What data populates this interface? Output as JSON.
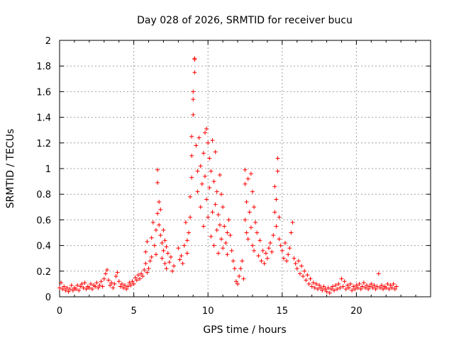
{
  "chart_data": {
    "type": "scatter",
    "title": "Day 028 of 2026, SRMTID for receiver bucu",
    "xlabel": "GPS time / hours",
    "ylabel": "SRMTID / TECUs",
    "xlim": [
      0,
      25
    ],
    "ylim": [
      0,
      2
    ],
    "x_ticks": [
      0,
      5,
      10,
      15,
      20
    ],
    "y_ticks": [
      0,
      0.2,
      0.4,
      0.6,
      0.8,
      1,
      1.2,
      1.4,
      1.6,
      1.8,
      2
    ],
    "x_tick_labels": [
      "0",
      "5",
      "10",
      "15",
      "20"
    ],
    "y_tick_labels": [
      "0",
      "0.2",
      "0.4",
      "0.6",
      "0.8",
      "1",
      "1.2",
      "1.4",
      "1.6",
      "1.8",
      "2"
    ],
    "grid": true,
    "marker": "plus",
    "color": "#ff0000",
    "series": [
      {
        "name": "SRMTID",
        "points": [
          [
            0.0,
            0.07
          ],
          [
            0.1,
            0.11
          ],
          [
            0.2,
            0.06
          ],
          [
            0.3,
            0.08
          ],
          [
            0.4,
            0.05
          ],
          [
            0.5,
            0.07
          ],
          [
            0.6,
            0.04
          ],
          [
            0.7,
            0.06
          ],
          [
            0.8,
            0.09
          ],
          [
            0.9,
            0.05
          ],
          [
            1.0,
            0.07
          ],
          [
            1.1,
            0.06
          ],
          [
            1.2,
            0.09
          ],
          [
            1.3,
            0.05
          ],
          [
            1.4,
            0.08
          ],
          [
            1.5,
            0.1
          ],
          [
            1.6,
            0.07
          ],
          [
            1.7,
            0.11
          ],
          [
            1.8,
            0.06
          ],
          [
            1.9,
            0.08
          ],
          [
            2.0,
            0.07
          ],
          [
            2.1,
            0.1
          ],
          [
            2.2,
            0.06
          ],
          [
            2.3,
            0.09
          ],
          [
            2.4,
            0.08
          ],
          [
            2.5,
            0.11
          ],
          [
            2.6,
            0.07
          ],
          [
            2.7,
            0.09
          ],
          [
            2.8,
            0.12
          ],
          [
            2.9,
            0.08
          ],
          [
            3.0,
            0.14
          ],
          [
            3.1,
            0.18
          ],
          [
            3.2,
            0.21
          ],
          [
            3.3,
            0.13
          ],
          [
            3.4,
            0.09
          ],
          [
            3.5,
            0.11
          ],
          [
            3.6,
            0.07
          ],
          [
            3.7,
            0.1
          ],
          [
            3.8,
            0.16
          ],
          [
            3.9,
            0.19
          ],
          [
            4.0,
            0.12
          ],
          [
            4.1,
            0.08
          ],
          [
            4.2,
            0.1
          ],
          [
            4.3,
            0.07
          ],
          [
            4.4,
            0.09
          ],
          [
            4.5,
            0.06
          ],
          [
            4.6,
            0.08
          ],
          [
            4.7,
            0.11
          ],
          [
            4.8,
            0.09
          ],
          [
            4.9,
            0.12
          ],
          [
            5.0,
            0.1
          ],
          [
            5.1,
            0.15
          ],
          [
            5.2,
            0.13
          ],
          [
            5.3,
            0.17
          ],
          [
            5.4,
            0.14
          ],
          [
            5.5,
            0.18
          ],
          [
            5.6,
            0.16
          ],
          [
            5.7,
            0.21
          ],
          [
            5.8,
            0.26
          ],
          [
            5.9,
            0.19
          ],
          [
            5.8,
            0.35
          ],
          [
            5.9,
            0.43
          ],
          [
            6.0,
            0.22
          ],
          [
            6.1,
            0.28
          ],
          [
            6.2,
            0.31
          ],
          [
            6.2,
            0.46
          ],
          [
            6.3,
            0.58
          ],
          [
            6.4,
            0.4
          ],
          [
            6.5,
            0.52
          ],
          [
            6.5,
            0.33
          ],
          [
            6.6,
            0.65
          ],
          [
            6.6,
            0.89
          ],
          [
            6.6,
            0.99
          ],
          [
            6.7,
            0.74
          ],
          [
            6.7,
            0.56
          ],
          [
            6.8,
            0.48
          ],
          [
            6.8,
            0.68
          ],
          [
            6.9,
            0.42
          ],
          [
            6.9,
            0.3
          ],
          [
            7.0,
            0.36
          ],
          [
            7.0,
            0.52
          ],
          [
            7.1,
            0.44
          ],
          [
            7.1,
            0.26
          ],
          [
            7.2,
            0.39
          ],
          [
            7.2,
            0.22
          ],
          [
            7.3,
            0.34
          ],
          [
            7.4,
            0.27
          ],
          [
            7.5,
            0.31
          ],
          [
            7.6,
            0.2
          ],
          [
            7.7,
            0.24
          ],
          [
            8.0,
            0.38
          ],
          [
            8.1,
            0.29
          ],
          [
            8.2,
            0.32
          ],
          [
            8.3,
            0.26
          ],
          [
            8.4,
            0.4
          ],
          [
            8.5,
            0.58
          ],
          [
            8.6,
            0.44
          ],
          [
            8.6,
            0.34
          ],
          [
            8.7,
            0.5
          ],
          [
            8.8,
            0.62
          ],
          [
            8.8,
            0.78
          ],
          [
            8.9,
            0.93
          ],
          [
            8.9,
            1.1
          ],
          [
            8.9,
            1.25
          ],
          [
            9.0,
            1.42
          ],
          [
            9.0,
            1.54
          ],
          [
            9.0,
            1.6
          ],
          [
            9.1,
            1.75
          ],
          [
            9.1,
            1.85
          ],
          [
            9.1,
            1.86
          ],
          [
            9.2,
            1.18
          ],
          [
            9.3,
            0.98
          ],
          [
            9.3,
            0.82
          ],
          [
            9.4,
            1.24
          ],
          [
            9.5,
            1.02
          ],
          [
            9.5,
            0.7
          ],
          [
            9.6,
            0.88
          ],
          [
            9.7,
            1.12
          ],
          [
            9.7,
            0.55
          ],
          [
            9.8,
            1.28
          ],
          [
            9.8,
            0.94
          ],
          [
            9.9,
            1.31
          ],
          [
            9.9,
            0.76
          ],
          [
            10.0,
            1.2
          ],
          [
            10.0,
            0.62
          ],
          [
            10.1,
            1.08
          ],
          [
            10.1,
            0.85
          ],
          [
            10.2,
            0.47
          ],
          [
            10.2,
            0.98
          ],
          [
            10.3,
            1.22
          ],
          [
            10.3,
            0.66
          ],
          [
            10.4,
            0.9
          ],
          [
            10.4,
            0.4
          ],
          [
            10.5,
            1.13
          ],
          [
            10.5,
            0.72
          ],
          [
            10.6,
            0.82
          ],
          [
            10.6,
            0.52
          ],
          [
            10.7,
            0.64
          ],
          [
            10.7,
            0.34
          ],
          [
            10.8,
            0.95
          ],
          [
            10.8,
            0.56
          ],
          [
            10.9,
            0.8
          ],
          [
            10.9,
            0.45
          ],
          [
            11.0,
            0.7
          ],
          [
            11.0,
            0.38
          ],
          [
            11.1,
            0.55
          ],
          [
            11.2,
            0.42
          ],
          [
            11.3,
            0.5
          ],
          [
            11.3,
            0.33
          ],
          [
            11.4,
            0.6
          ],
          [
            11.5,
            0.48
          ],
          [
            11.6,
            0.36
          ],
          [
            11.7,
            0.28
          ],
          [
            11.8,
            0.22
          ],
          [
            11.9,
            0.12
          ],
          [
            12.0,
            0.1
          ],
          [
            12.1,
            0.16
          ],
          [
            12.2,
            0.22
          ],
          [
            12.3,
            0.28
          ],
          [
            12.4,
            0.14
          ],
          [
            12.5,
            0.99
          ],
          [
            12.5,
            0.88
          ],
          [
            12.5,
            0.6
          ],
          [
            12.6,
            0.74
          ],
          [
            12.6,
            0.5
          ],
          [
            12.7,
            0.92
          ],
          [
            12.7,
            0.45
          ],
          [
            12.8,
            0.66
          ],
          [
            12.9,
            0.96
          ],
          [
            12.9,
            0.54
          ],
          [
            13.0,
            0.82
          ],
          [
            13.0,
            0.4
          ],
          [
            13.1,
            0.7
          ],
          [
            13.1,
            0.36
          ],
          [
            13.2,
            0.58
          ],
          [
            13.3,
            0.5
          ],
          [
            13.4,
            0.32
          ],
          [
            13.5,
            0.44
          ],
          [
            13.6,
            0.28
          ],
          [
            13.7,
            0.36
          ],
          [
            13.8,
            0.26
          ],
          [
            13.9,
            0.34
          ],
          [
            14.0,
            0.3
          ],
          [
            14.1,
            0.38
          ],
          [
            14.2,
            0.42
          ],
          [
            14.3,
            0.35
          ],
          [
            14.4,
            0.48
          ],
          [
            14.5,
            0.86
          ],
          [
            14.5,
            0.66
          ],
          [
            14.6,
            0.76
          ],
          [
            14.6,
            0.55
          ],
          [
            14.7,
            1.08
          ],
          [
            14.7,
            0.98
          ],
          [
            14.8,
            0.62
          ],
          [
            14.8,
            0.45
          ],
          [
            14.9,
            0.4
          ],
          [
            15.0,
            0.36
          ],
          [
            15.1,
            0.3
          ],
          [
            15.2,
            0.42
          ],
          [
            15.3,
            0.28
          ],
          [
            15.4,
            0.33
          ],
          [
            15.5,
            0.38
          ],
          [
            15.6,
            0.5
          ],
          [
            15.7,
            0.58
          ],
          [
            15.8,
            0.3
          ],
          [
            15.9,
            0.26
          ],
          [
            16.0,
            0.22
          ],
          [
            16.1,
            0.28
          ],
          [
            16.2,
            0.18
          ],
          [
            16.3,
            0.24
          ],
          [
            16.4,
            0.16
          ],
          [
            16.5,
            0.2
          ],
          [
            16.6,
            0.13
          ],
          [
            16.7,
            0.17
          ],
          [
            16.8,
            0.1
          ],
          [
            16.9,
            0.14
          ],
          [
            17.0,
            0.08
          ],
          [
            17.1,
            0.11
          ],
          [
            17.2,
            0.07
          ],
          [
            17.3,
            0.1
          ],
          [
            17.4,
            0.06
          ],
          [
            17.5,
            0.09
          ],
          [
            17.6,
            0.07
          ],
          [
            17.7,
            0.05
          ],
          [
            17.8,
            0.08
          ],
          [
            17.9,
            0.06
          ],
          [
            18.0,
            0.04
          ],
          [
            18.1,
            0.07
          ],
          [
            18.2,
            0.03
          ],
          [
            18.3,
            0.06
          ],
          [
            18.4,
            0.08
          ],
          [
            18.5,
            0.05
          ],
          [
            18.6,
            0.09
          ],
          [
            18.7,
            0.06
          ],
          [
            18.8,
            0.1
          ],
          [
            18.9,
            0.07
          ],
          [
            19.0,
            0.14
          ],
          [
            19.1,
            0.08
          ],
          [
            19.2,
            0.12
          ],
          [
            19.3,
            0.06
          ],
          [
            19.4,
            0.09
          ],
          [
            19.5,
            0.07
          ],
          [
            19.6,
            0.1
          ],
          [
            19.7,
            0.05
          ],
          [
            19.8,
            0.08
          ],
          [
            19.9,
            0.06
          ],
          [
            20.0,
            0.09
          ],
          [
            20.1,
            0.07
          ],
          [
            20.2,
            0.1
          ],
          [
            20.3,
            0.06
          ],
          [
            20.4,
            0.08
          ],
          [
            20.5,
            0.11
          ],
          [
            20.6,
            0.07
          ],
          [
            20.7,
            0.09
          ],
          [
            20.8,
            0.06
          ],
          [
            20.9,
            0.08
          ],
          [
            21.0,
            0.1
          ],
          [
            21.1,
            0.07
          ],
          [
            21.2,
            0.09
          ],
          [
            21.3,
            0.06
          ],
          [
            21.4,
            0.08
          ],
          [
            21.5,
            0.18
          ],
          [
            21.6,
            0.07
          ],
          [
            21.7,
            0.09
          ],
          [
            21.8,
            0.06
          ],
          [
            21.9,
            0.08
          ],
          [
            22.0,
            0.07
          ],
          [
            22.1,
            0.1
          ],
          [
            22.2,
            0.06
          ],
          [
            22.3,
            0.09
          ],
          [
            22.4,
            0.07
          ],
          [
            22.5,
            0.1
          ],
          [
            22.6,
            0.06
          ],
          [
            22.7,
            0.08
          ]
        ]
      }
    ]
  }
}
